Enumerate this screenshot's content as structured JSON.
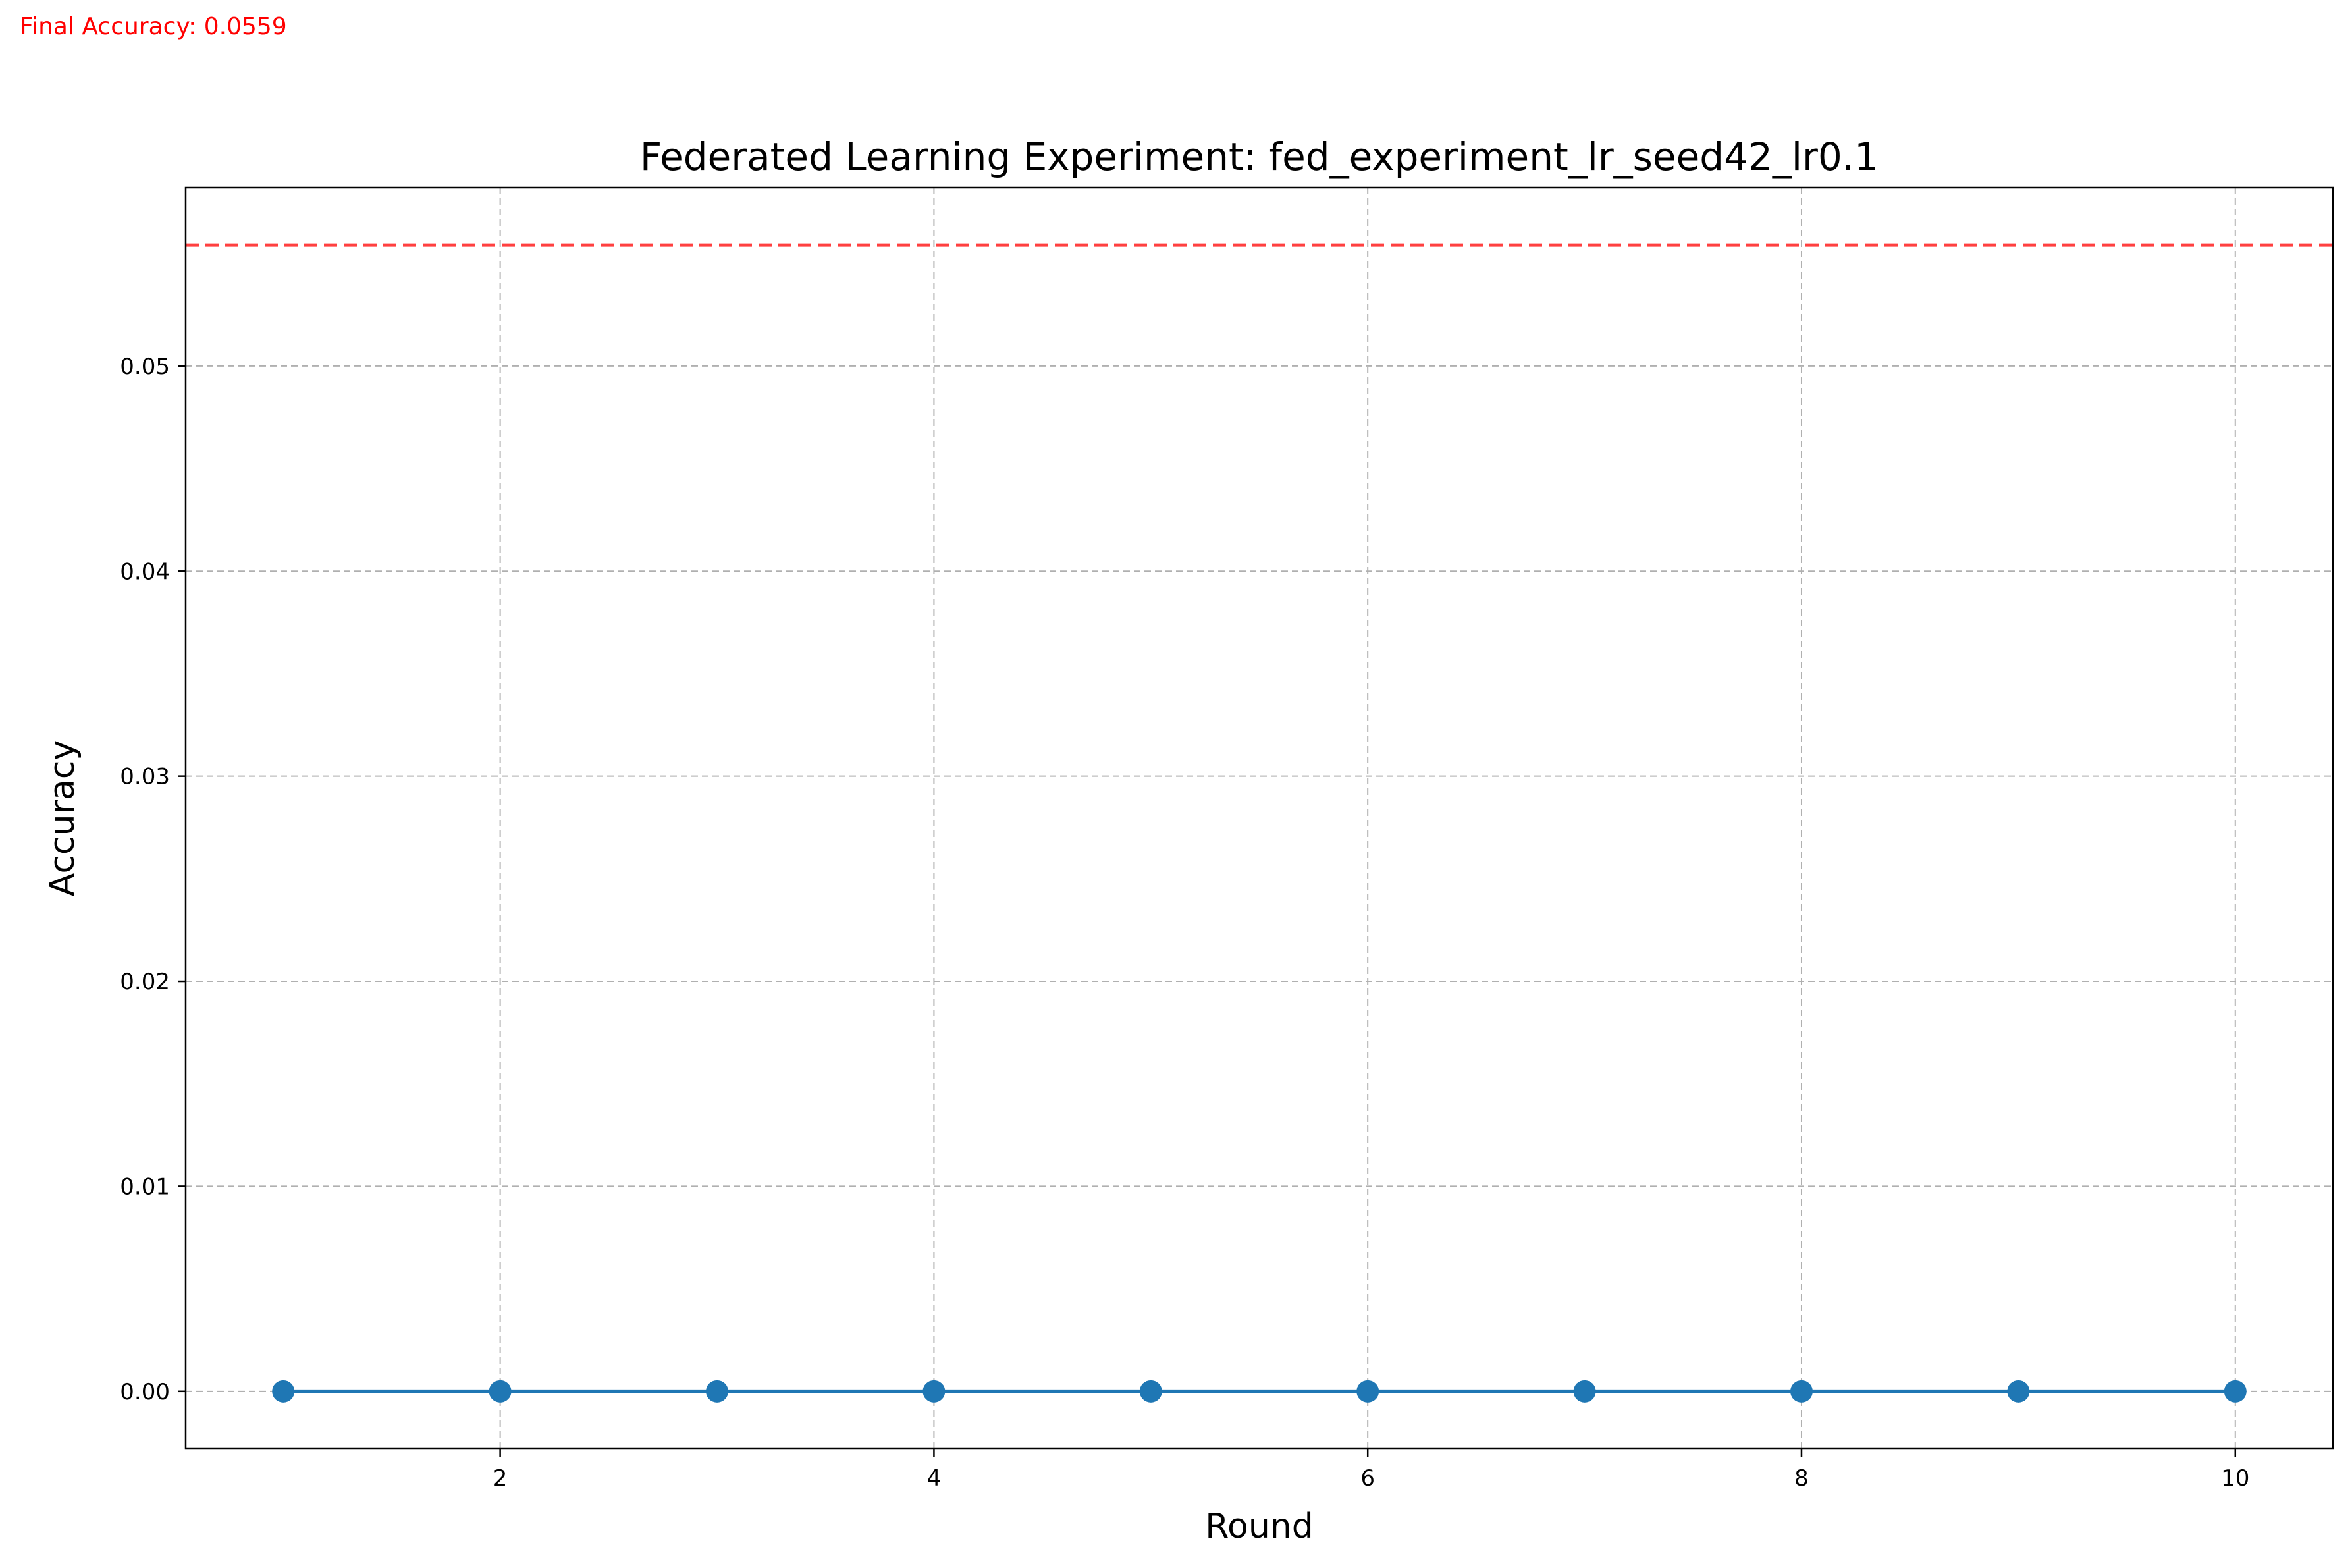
{
  "annotation": {
    "final_accuracy_text": "Final Accuracy: 0.0559"
  },
  "colors": {
    "series_line": "#1f77b4",
    "reference_line": "#ff0000",
    "grid": "#b0b0b0",
    "annotation": "#ff0000"
  },
  "chart_data": {
    "type": "line",
    "title": "Federated Learning Experiment: fed_experiment_lr_seed42_lr0.1",
    "xlabel": "Round",
    "ylabel": "Accuracy",
    "x": [
      1,
      2,
      3,
      4,
      5,
      6,
      7,
      8,
      9,
      10
    ],
    "series": [
      {
        "values": [
          0,
          0,
          0,
          0,
          0,
          0,
          0,
          0,
          0,
          0
        ],
        "color": "#1f77b4",
        "marker": "circle"
      }
    ],
    "reference_lines": [
      {
        "orientation": "horizontal",
        "y": 0.0559,
        "style": "dashed",
        "color": "#ff0000"
      }
    ],
    "xlim": [
      0.55,
      10.45
    ],
    "ylim": [
      -0.0028,
      0.0587
    ],
    "xticks": [
      2,
      4,
      6,
      8,
      10
    ],
    "xtick_labels": [
      "2",
      "4",
      "6",
      "8",
      "10"
    ],
    "yticks": [
      0.0,
      0.01,
      0.02,
      0.03,
      0.04,
      0.05
    ],
    "ytick_labels": [
      "0.00",
      "0.01",
      "0.02",
      "0.03",
      "0.04",
      "0.05"
    ],
    "grid": true,
    "legend": "none"
  }
}
